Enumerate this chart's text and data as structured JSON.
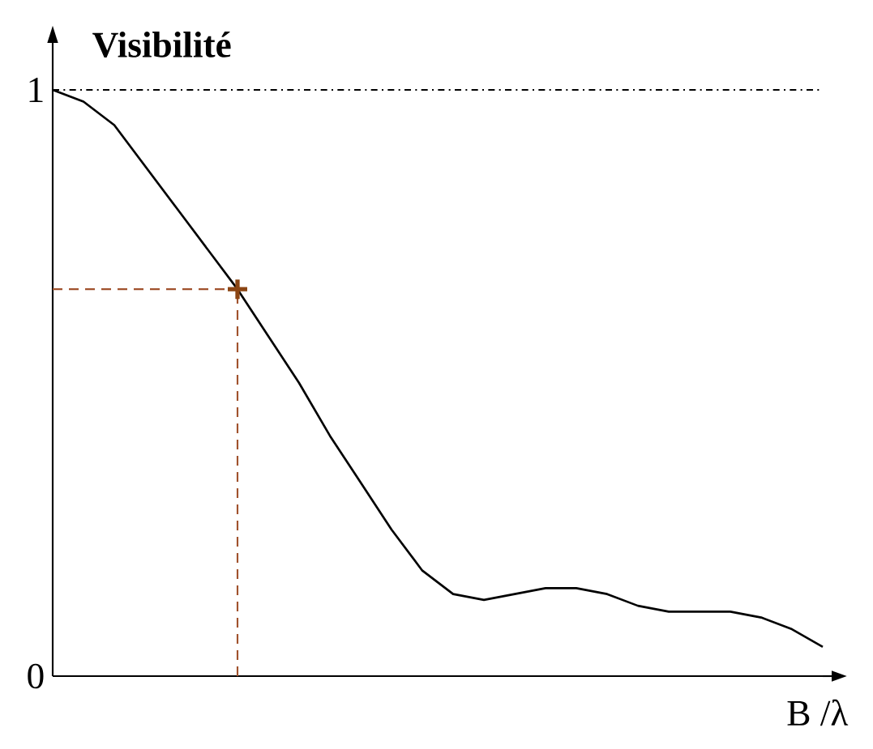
{
  "chart_data": {
    "type": "line",
    "xlabel": "B /λ",
    "ylabel": "Visibilité",
    "categories": [
      null,
      null,
      null,
      null,
      null,
      null,
      null,
      null,
      null,
      null,
      null,
      null,
      null,
      null,
      null,
      null,
      null,
      null,
      null,
      null,
      null,
      null,
      null,
      null,
      null,
      null
    ],
    "series": [
      {
        "color": "#000000",
        "line_style": "solid",
        "values": [
          1.0,
          0.98,
          0.94,
          0.87,
          0.8,
          0.73,
          0.66,
          0.58,
          0.5,
          0.41,
          0.33,
          0.25,
          0.18,
          0.14,
          0.13,
          0.14,
          0.15,
          0.15,
          0.14,
          0.12,
          0.11,
          0.11,
          0.11,
          0.1,
          0.08,
          0.05
        ]
      },
      {
        "type": "scatter",
        "color": "#8b4513",
        "marker": "cross",
        "values": [
          null,
          null,
          null,
          null,
          null,
          null,
          0.66,
          null,
          null,
          null,
          null,
          null,
          null,
          null,
          null,
          null,
          null,
          null,
          null,
          null,
          null,
          null,
          null,
          null,
          null,
          null
        ]
      }
    ],
    "ylim": [
      0,
      1.08
    ],
    "yticks": [
      0,
      1
    ],
    "ref_lines": [
      {
        "axis": "y",
        "value": 1,
        "color": "#000000",
        "line_style": "dotted"
      },
      {
        "axis": "y",
        "value": 0.66,
        "color": "#a0522d",
        "line_style": "dashed"
      }
    ]
  }
}
